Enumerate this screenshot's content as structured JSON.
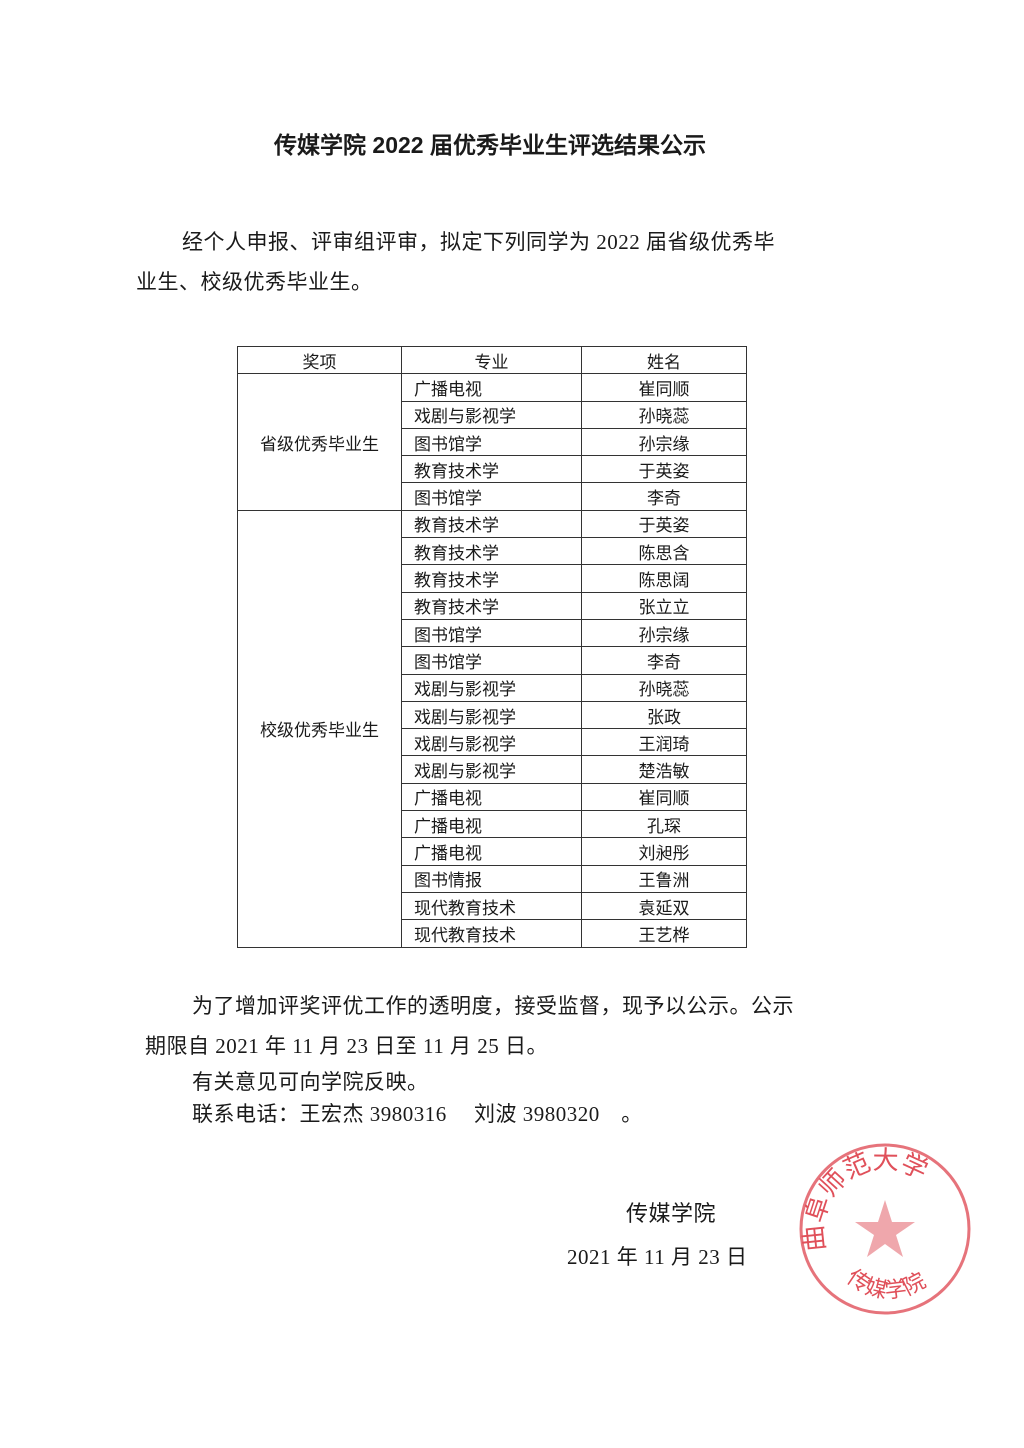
{
  "title": "传媒学院 2022 届优秀毕业生评选结果公示",
  "intro": [
    "经个人申报、评审组评审，拟定下列同学为 2022 届省级优秀毕",
    "业生、校级优秀毕业生。"
  ],
  "table": {
    "headers": [
      "奖项",
      "专业",
      "姓名"
    ],
    "groups": [
      {
        "award": "省级优秀毕业生",
        "rows": [
          [
            "广播电视",
            "崔同顺"
          ],
          [
            "戏剧与影视学",
            "孙晓蕊"
          ],
          [
            "图书馆学",
            "孙宗缘"
          ],
          [
            "教育技术学",
            "于英姿"
          ],
          [
            "图书馆学",
            "李奇"
          ]
        ]
      },
      {
        "award": "校级优秀毕业生",
        "rows": [
          [
            "教育技术学",
            "于英姿"
          ],
          [
            "教育技术学",
            "陈思含"
          ],
          [
            "教育技术学",
            "陈思阔"
          ],
          [
            "教育技术学",
            "张立立"
          ],
          [
            "图书馆学",
            "孙宗缘"
          ],
          [
            "图书馆学",
            "李奇"
          ],
          [
            "戏剧与影视学",
            "孙晓蕊"
          ],
          [
            "戏剧与影视学",
            "张政"
          ],
          [
            "戏剧与影视学",
            "王润琦"
          ],
          [
            "戏剧与影视学",
            "楚浩敏"
          ],
          [
            "广播电视",
            "崔同顺"
          ],
          [
            "广播电视",
            "孔琛"
          ],
          [
            "广播电视",
            "刘昶彤"
          ],
          [
            "图书情报",
            "王鲁洲"
          ],
          [
            "现代教育技术",
            "袁延双"
          ],
          [
            "现代教育技术",
            "王艺桦"
          ]
        ]
      }
    ]
  },
  "closing": [
    "为了增加评奖评优工作的透明度，接受监督，现予以公示。公示",
    "期限自 2021 年 11 月 23 日至 11 月 25 日。",
    "有关意见可向学院反映。",
    "联系电话：王宏杰 3980316　 刘波 3980320　。"
  ],
  "signature": {
    "org": "传媒学院",
    "date": "2021 年 11 月 23 日"
  },
  "seal": {
    "text_top": "曲阜师范大学",
    "text_bottom": "传媒学院",
    "color": "#e0505a"
  }
}
